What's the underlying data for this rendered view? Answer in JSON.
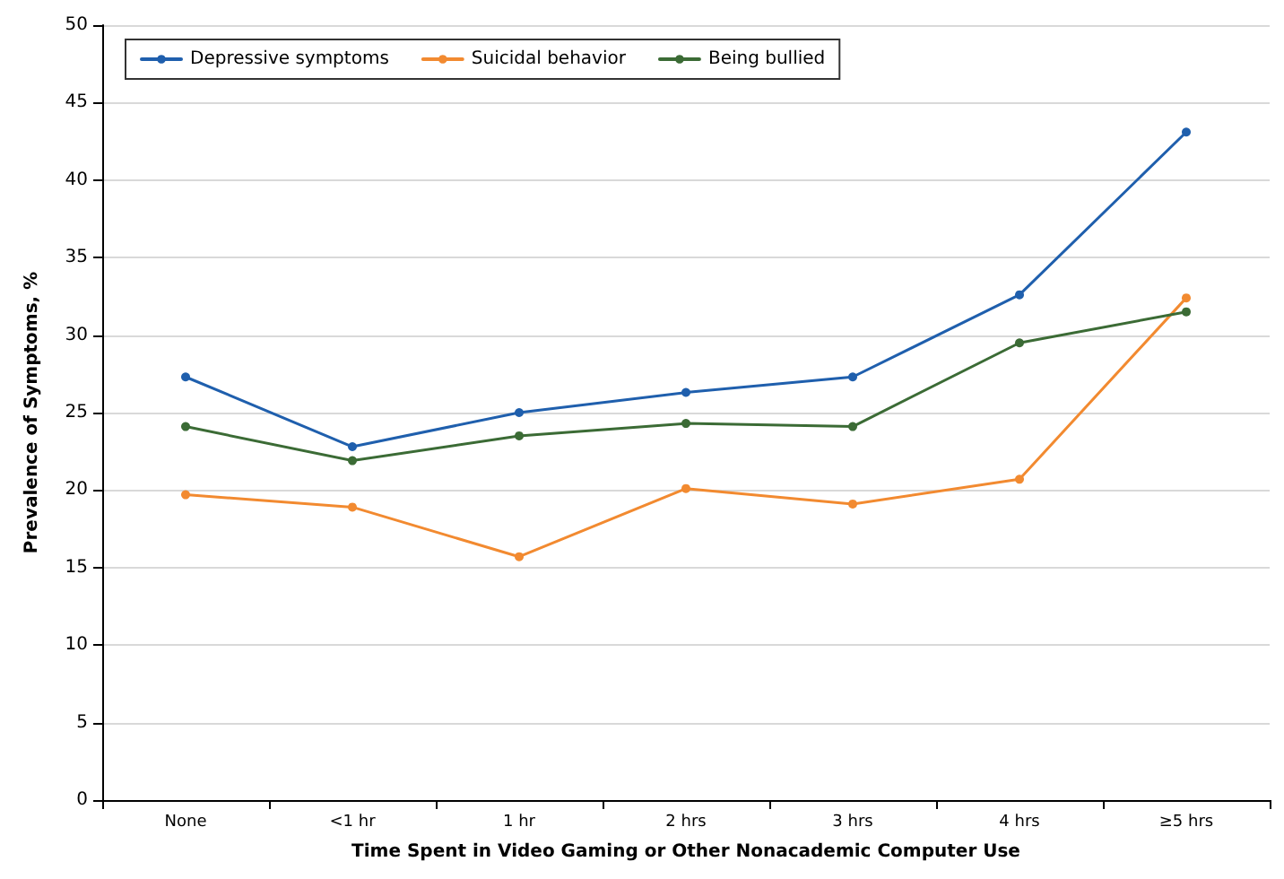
{
  "chart_data": {
    "type": "line",
    "xlabel": "Time Spent in Video Gaming or Other Nonacademic Computer Use",
    "ylabel": "Prevalence of Symptoms, %",
    "categories": [
      "None",
      "<1 hr",
      "1 hr",
      "2 hrs",
      "3 hrs",
      "4 hrs",
      "≥5 hrs"
    ],
    "series": [
      {
        "name": "Depressive symptoms",
        "color": "#1f5fad",
        "values": [
          27.3,
          22.8,
          25.0,
          26.3,
          27.3,
          32.6,
          43.1
        ]
      },
      {
        "name": "Suicidal behavior",
        "color": "#f28a30",
        "values": [
          19.7,
          18.9,
          15.7,
          20.1,
          19.1,
          20.7,
          32.4
        ]
      },
      {
        "name": "Being bullied",
        "color": "#3b6b35",
        "values": [
          24.1,
          21.9,
          23.5,
          24.3,
          24.1,
          29.5,
          31.5
        ]
      }
    ],
    "ylim": [
      0,
      50
    ],
    "yticks": [
      0,
      5,
      10,
      15,
      20,
      25,
      30,
      35,
      40,
      45,
      50
    ],
    "grid": "y",
    "legend": "top left",
    "marker": "circle",
    "line_style": "solid"
  }
}
